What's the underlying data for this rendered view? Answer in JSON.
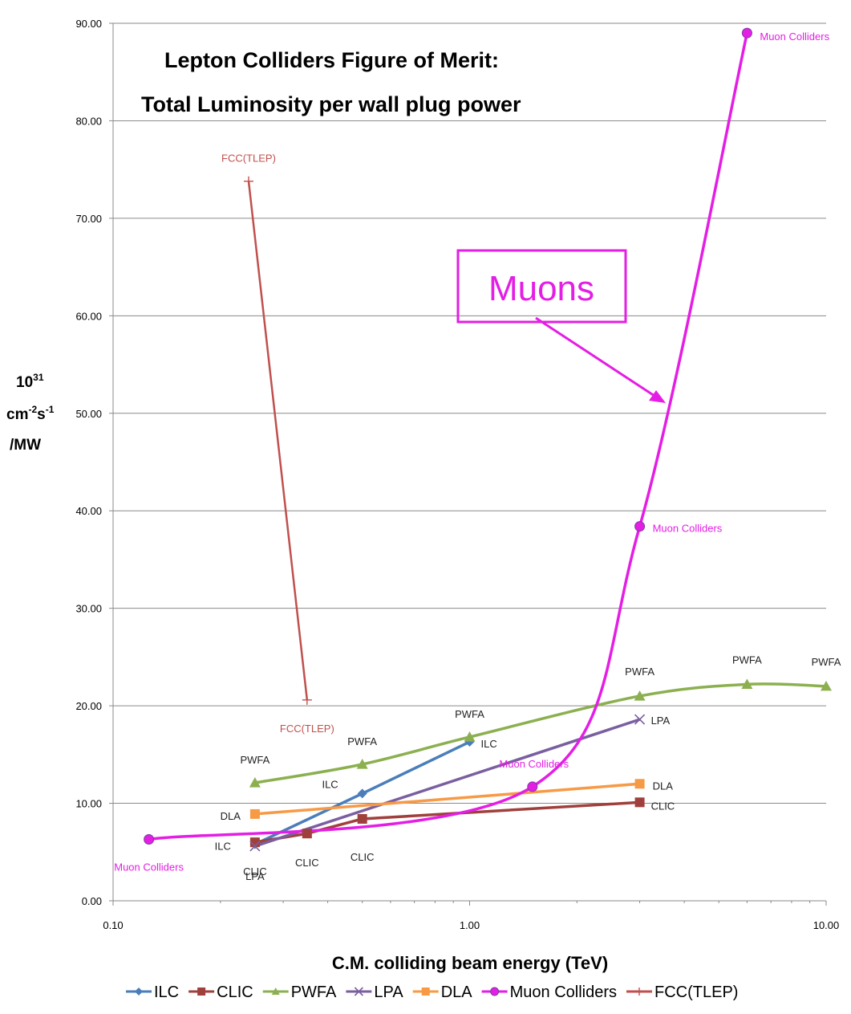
{
  "chart_data": {
    "type": "line",
    "title": "Lepton Colliders Figure of Merit:",
    "subtitle": "Total Luminosity per wall plug power",
    "xlabel": "C.M. colliding beam energy (TeV)",
    "ylabel_lines": [
      "10",
      "cm",
      "s",
      "/MW"
    ],
    "ylabel_sup": [
      "31",
      "-2",
      "-1"
    ],
    "x_scale": "log",
    "xlim": [
      0.1,
      10
    ],
    "ylim": [
      0,
      90
    ],
    "x_ticks": [
      "0.10",
      "1.00",
      "10.00"
    ],
    "y_ticks": [
      "0.00",
      "10.00",
      "20.00",
      "30.00",
      "40.00",
      "50.00",
      "60.00",
      "70.00",
      "80.00",
      "90.00"
    ],
    "grid": "horizontal",
    "legend_position": "bottom",
    "series": [
      {
        "name": "ILC",
        "color": "#4a7ebb",
        "marker": "diamond",
        "x": [
          0.25,
          0.5,
          1.0
        ],
        "y": [
          5.8,
          11.0,
          16.3
        ],
        "labels": [
          "ILC",
          "ILC",
          "ILC"
        ]
      },
      {
        "name": "CLIC",
        "color": "#a0403c",
        "marker": "square",
        "x": [
          0.25,
          0.35,
          0.5,
          3.0
        ],
        "y": [
          6.0,
          6.9,
          8.4,
          10.1
        ],
        "labels": [
          "CLIC",
          "CLIC",
          "CLIC",
          "CLIC"
        ]
      },
      {
        "name": "PWFA",
        "color": "#8cb050",
        "marker": "triangle",
        "x": [
          0.25,
          0.5,
          1.0,
          3.0,
          6.0,
          10.0
        ],
        "y": [
          12.1,
          14.0,
          16.8,
          21.0,
          22.2,
          22.0
        ],
        "labels": [
          "PWFA",
          "PWFA",
          "PWFA",
          "PWFA",
          "PWFA",
          "PWFA"
        ]
      },
      {
        "name": "LPA",
        "color": "#7a5fa0",
        "marker": "x",
        "x": [
          0.25,
          3.0
        ],
        "y": [
          5.6,
          18.6
        ],
        "labels": [
          "LPA",
          "LPA"
        ]
      },
      {
        "name": "DLA",
        "color": "#f79a46",
        "marker": "square",
        "x": [
          0.25,
          3.0
        ],
        "y": [
          8.9,
          12.0
        ],
        "labels": [
          "DLA",
          "DLA"
        ]
      },
      {
        "name": "Muon Colliders",
        "color": "#e41ee4",
        "marker": "circle",
        "x": [
          0.126,
          1.5,
          3.0,
          6.0
        ],
        "y": [
          6.3,
          11.7,
          38.4,
          89.0
        ],
        "labels": [
          "Muon Colliders",
          "Muon Colliders",
          "Muon Colliders",
          "Muon Colliders"
        ]
      },
      {
        "name": "FCC(TLEP)",
        "color": "#c0504d",
        "marker": "plus",
        "x": [
          0.24,
          0.35
        ],
        "y": [
          73.8,
          20.6
        ],
        "labels": [
          "FCC(TLEP)",
          "FCC(TLEP)"
        ]
      }
    ],
    "annotations": [
      {
        "text": "Muons",
        "color": "#e41ee4",
        "points_to_series": "Muon Colliders"
      }
    ]
  }
}
